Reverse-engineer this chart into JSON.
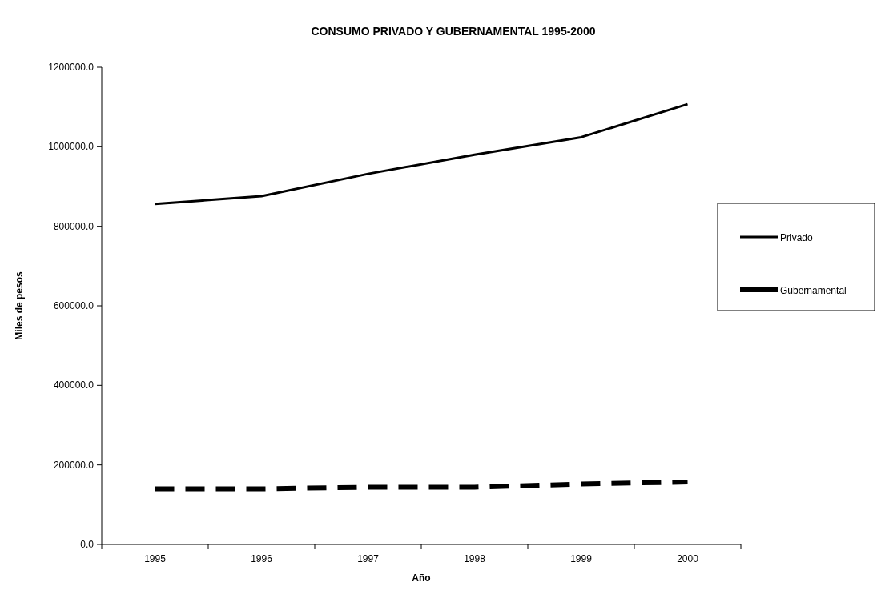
{
  "chart_data": {
    "type": "line",
    "title": "CONSUMO PRIVADO Y GUBERNAMENTAL 1995-2000",
    "xlabel": "Año",
    "ylabel": "Miles de pesos",
    "categories": [
      "1995",
      "1996",
      "1997",
      "1998",
      "1999",
      "2000"
    ],
    "series": [
      {
        "name": "Privado",
        "color": "#000000",
        "line_style": "solid",
        "values": [
          856000,
          876000,
          932000,
          980000,
          1024000,
          1107000
        ]
      },
      {
        "name": "Gubernamental",
        "color": "#000000",
        "line_style": "dashed",
        "values": [
          140000,
          140000,
          144000,
          144000,
          152000,
          157000
        ]
      }
    ],
    "ylim": [
      0,
      1200000
    ],
    "yticks": [
      {
        "value": 0,
        "label": "0.0"
      },
      {
        "value": 200000,
        "label": "200000.0"
      },
      {
        "value": 400000,
        "label": "400000.0"
      },
      {
        "value": 600000,
        "label": "600000.0"
      },
      {
        "value": 800000,
        "label": "800000.0"
      },
      {
        "value": 1000000,
        "label": "1000000.0"
      },
      {
        "value": 1200000,
        "label": "1200000.0"
      }
    ],
    "grid": false,
    "legend": "right",
    "marker": "none"
  }
}
